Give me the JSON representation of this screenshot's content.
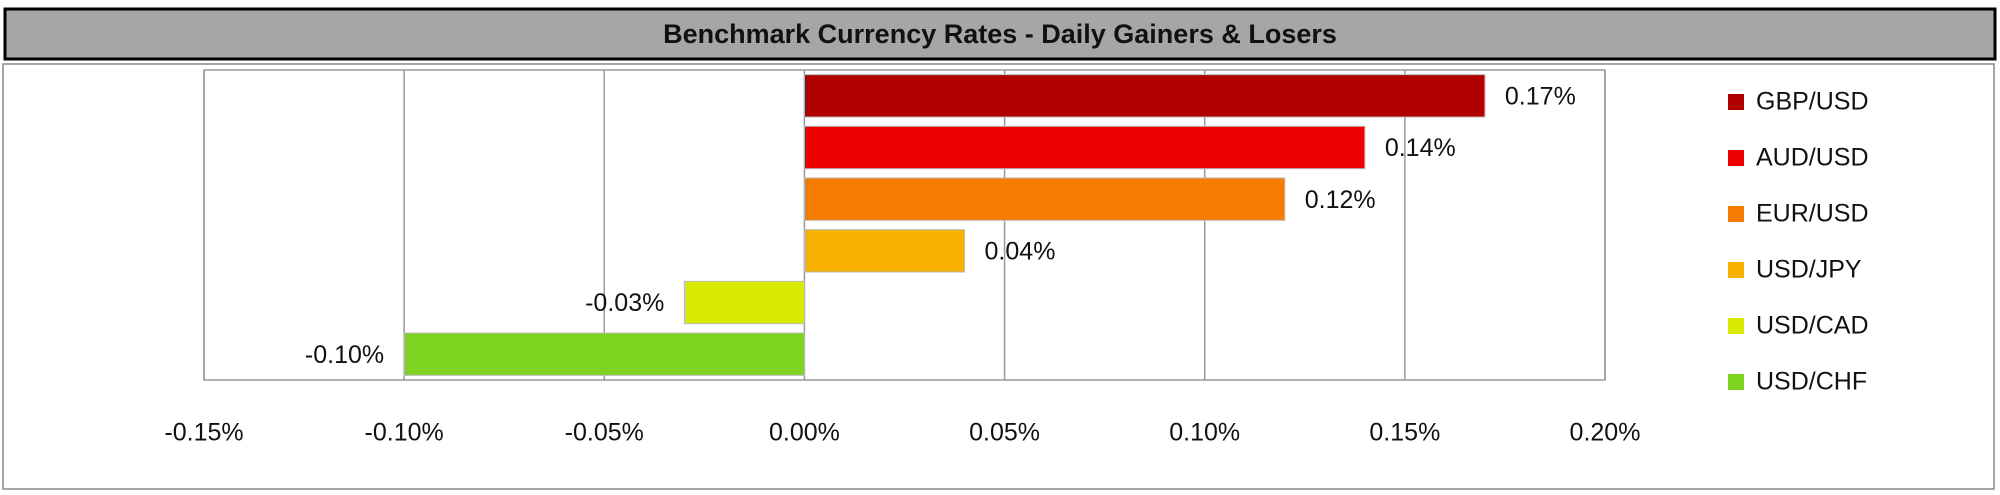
{
  "chart_data": {
    "type": "bar",
    "orientation": "horizontal",
    "title": "Benchmark Currency Rates - Daily Gainers & Losers",
    "categories": [
      "GBP/USD",
      "AUD/USD",
      "EUR/USD",
      "USD/JPY",
      "USD/CAD",
      "USD/CHF"
    ],
    "values": [
      0.17,
      0.14,
      0.12,
      0.04,
      -0.03,
      -0.1
    ],
    "value_labels": [
      "0.17%",
      "0.14%",
      "0.12%",
      "0.04%",
      "-0.03%",
      "-0.10%"
    ],
    "colors": [
      "#b00000",
      "#ee0000",
      "#f57c00",
      "#f7b200",
      "#d8ea00",
      "#7ed321"
    ],
    "xlim": [
      -0.15,
      0.2
    ],
    "xticks": [
      {
        "value": -0.15,
        "label": "-0.15%"
      },
      {
        "value": -0.1,
        "label": "-0.10%"
      },
      {
        "value": -0.05,
        "label": "-0.05%"
      },
      {
        "value": 0,
        "label": "0.00%"
      },
      {
        "value": 0.05,
        "label": "0.05%"
      },
      {
        "value": 0.1,
        "label": "0.10%"
      },
      {
        "value": 0.15,
        "label": "0.15%"
      },
      {
        "value": 0.2,
        "label": "0.20%"
      }
    ],
    "grid": true,
    "legend": "right"
  }
}
